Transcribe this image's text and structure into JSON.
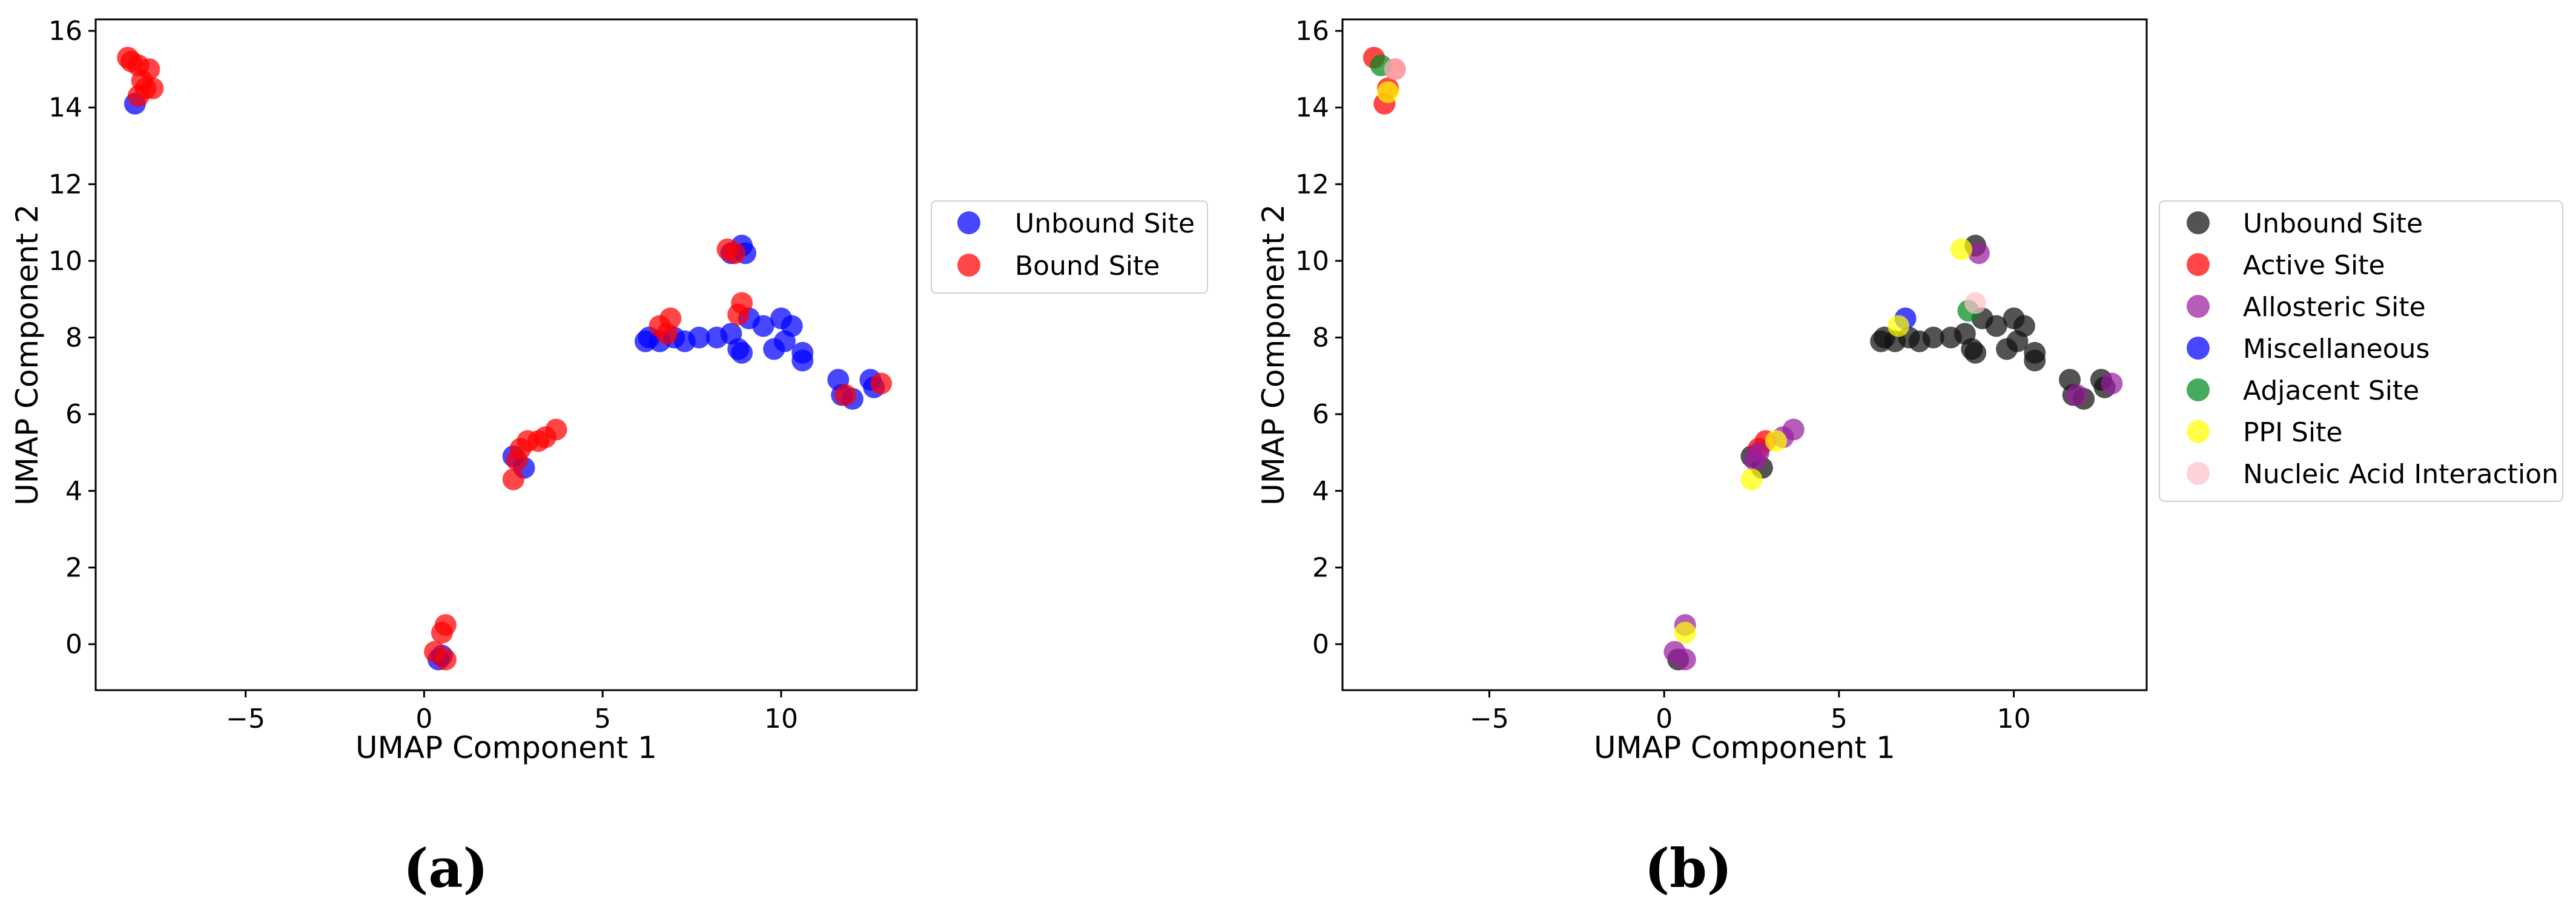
{
  "panels": [
    {
      "panel_label": "(a)",
      "xlabel": "UMAP Component 1",
      "ylabel": "UMAP Component 2",
      "xticks": [
        "−5",
        "0",
        "5",
        "10"
      ],
      "yticks": [
        "0",
        "2",
        "4",
        "6",
        "8",
        "10",
        "12",
        "14",
        "16"
      ],
      "legend": [
        {
          "label": "Unbound Site",
          "color": "#0000ff"
        },
        {
          "label": "Bound Site",
          "color": "#ff0000"
        }
      ]
    },
    {
      "panel_label": "(b)",
      "xlabel": "UMAP Component 1",
      "ylabel": "UMAP Component 2",
      "xticks": [
        "−5",
        "0",
        "5",
        "10"
      ],
      "yticks": [
        "0",
        "2",
        "4",
        "6",
        "8",
        "10",
        "12",
        "14",
        "16"
      ],
      "legend": [
        {
          "label": "Unbound Site",
          "color": "#111111"
        },
        {
          "label": "Active Site",
          "color": "#ff0000"
        },
        {
          "label": "Allosteric Site",
          "color": "#9a1fa0"
        },
        {
          "label": "Miscellaneous",
          "color": "#0000ff"
        },
        {
          "label": "Adjacent Site",
          "color": "#008a1e"
        },
        {
          "label": "PPI Site",
          "color": "#ffff00"
        },
        {
          "label": "Nucleic Acid Interaction",
          "color": "#ffc0cb"
        }
      ]
    }
  ],
  "chart_data": [
    {
      "type": "scatter",
      "title": "",
      "xlabel": "UMAP Component 1",
      "ylabel": "UMAP Component 2",
      "xlim": [
        -9.2,
        13.8
      ],
      "ylim": [
        -1.2,
        16.3
      ],
      "xticks": [
        -5,
        0,
        5,
        10
      ],
      "yticks": [
        0,
        2,
        4,
        6,
        8,
        10,
        12,
        14,
        16
      ],
      "legend_position": "outside-right",
      "series": [
        {
          "name": "Unbound Site",
          "color": "#0000ff",
          "points": [
            [
              -8.1,
              14.1
            ],
            [
              2.5,
              4.9
            ],
            [
              2.8,
              4.6
            ],
            [
              0.5,
              -0.3
            ],
            [
              0.4,
              -0.4
            ],
            [
              6.2,
              7.9
            ],
            [
              6.3,
              8.0
            ],
            [
              6.6,
              7.9
            ],
            [
              7.0,
              8.0
            ],
            [
              7.3,
              7.9
            ],
            [
              7.7,
              8.0
            ],
            [
              8.2,
              8.0
            ],
            [
              8.6,
              8.1
            ],
            [
              8.8,
              7.7
            ],
            [
              8.9,
              7.6
            ],
            [
              9.1,
              8.5
            ],
            [
              9.5,
              8.3
            ],
            [
              9.8,
              7.7
            ],
            [
              10.0,
              8.5
            ],
            [
              10.1,
              7.9
            ],
            [
              10.3,
              8.3
            ],
            [
              10.6,
              7.6
            ],
            [
              10.6,
              7.4
            ],
            [
              8.6,
              10.2
            ],
            [
              8.9,
              10.4
            ],
            [
              9.0,
              10.2
            ],
            [
              11.6,
              6.9
            ],
            [
              11.7,
              6.5
            ],
            [
              12.0,
              6.4
            ],
            [
              12.5,
              6.9
            ],
            [
              12.6,
              6.7
            ]
          ]
        },
        {
          "name": "Bound Site",
          "color": "#ff0000",
          "points": [
            [
              -8.3,
              15.3
            ],
            [
              -8.2,
              15.2
            ],
            [
              -8.0,
              15.1
            ],
            [
              -7.7,
              15.0
            ],
            [
              -7.9,
              14.7
            ],
            [
              -7.8,
              14.5
            ],
            [
              -7.6,
              14.5
            ],
            [
              -8.0,
              14.3
            ],
            [
              2.5,
              4.3
            ],
            [
              2.6,
              4.8
            ],
            [
              2.7,
              5.1
            ],
            [
              2.9,
              5.3
            ],
            [
              3.2,
              5.3
            ],
            [
              3.4,
              5.4
            ],
            [
              3.7,
              5.6
            ],
            [
              0.5,
              0.3
            ],
            [
              0.6,
              0.5
            ],
            [
              0.3,
              -0.2
            ],
            [
              0.6,
              -0.4
            ],
            [
              6.6,
              8.3
            ],
            [
              6.9,
              8.5
            ],
            [
              6.8,
              8.1
            ],
            [
              8.5,
              10.3
            ],
            [
              8.7,
              10.2
            ],
            [
              8.8,
              8.6
            ],
            [
              8.9,
              8.9
            ],
            [
              11.8,
              6.5
            ],
            [
              12.8,
              6.8
            ]
          ]
        }
      ]
    },
    {
      "type": "scatter",
      "title": "",
      "xlabel": "UMAP Component 1",
      "ylabel": "UMAP Component 2",
      "xlim": [
        -9.2,
        13.8
      ],
      "ylim": [
        -1.2,
        16.3
      ],
      "xticks": [
        -5,
        0,
        5,
        10
      ],
      "yticks": [
        0,
        2,
        4,
        6,
        8,
        10,
        12,
        14,
        16
      ],
      "legend_position": "outside-right",
      "series": [
        {
          "name": "Unbound Site",
          "color": "#111111",
          "points": [
            [
              2.5,
              4.9
            ],
            [
              2.8,
              4.6
            ],
            [
              6.2,
              7.9
            ],
            [
              6.3,
              8.0
            ],
            [
              6.6,
              7.9
            ],
            [
              7.0,
              8.0
            ],
            [
              7.3,
              7.9
            ],
            [
              7.7,
              8.0
            ],
            [
              8.2,
              8.0
            ],
            [
              8.6,
              8.1
            ],
            [
              8.8,
              7.7
            ],
            [
              8.9,
              7.6
            ],
            [
              9.1,
              8.5
            ],
            [
              9.5,
              8.3
            ],
            [
              9.8,
              7.7
            ],
            [
              10.0,
              8.5
            ],
            [
              10.1,
              7.9
            ],
            [
              10.3,
              8.3
            ],
            [
              10.6,
              7.6
            ],
            [
              10.6,
              7.4
            ],
            [
              8.9,
              10.4
            ],
            [
              11.6,
              6.9
            ],
            [
              11.7,
              6.5
            ],
            [
              12.0,
              6.4
            ],
            [
              12.5,
              6.9
            ],
            [
              12.6,
              6.7
            ],
            [
              0.4,
              -0.4
            ]
          ]
        },
        {
          "name": "Active Site",
          "color": "#ff0000",
          "points": [
            [
              -8.3,
              15.3
            ],
            [
              -7.7,
              15.0
            ],
            [
              -7.9,
              14.5
            ],
            [
              -8.0,
              14.1
            ],
            [
              2.7,
              5.1
            ],
            [
              2.9,
              5.3
            ]
          ]
        },
        {
          "name": "Allosteric Site",
          "color": "#9a1fa0",
          "points": [
            [
              2.6,
              4.8
            ],
            [
              3.4,
              5.4
            ],
            [
              3.7,
              5.6
            ],
            [
              0.6,
              0.5
            ],
            [
              0.3,
              -0.2
            ],
            [
              0.6,
              -0.4
            ],
            [
              9.0,
              10.2
            ],
            [
              11.8,
              6.5
            ],
            [
              12.8,
              6.8
            ],
            [
              2.7,
              5.0
            ]
          ]
        },
        {
          "name": "Miscellaneous",
          "color": "#0000ff",
          "points": [
            [
              6.9,
              8.5
            ]
          ]
        },
        {
          "name": "Adjacent Site",
          "color": "#008a1e",
          "points": [
            [
              -8.1,
              15.1
            ],
            [
              8.7,
              8.7
            ]
          ]
        },
        {
          "name": "PPI Site",
          "color": "#ffff00",
          "points": [
            [
              -7.9,
              14.4
            ],
            [
              2.5,
              4.3
            ],
            [
              3.2,
              5.3
            ],
            [
              0.6,
              0.3
            ],
            [
              6.7,
              8.3
            ],
            [
              8.5,
              10.3
            ]
          ]
        },
        {
          "name": "Nucleic Acid Interaction",
          "color": "#ffc0cb",
          "points": [
            [
              -7.7,
              15.0
            ],
            [
              8.9,
              8.9
            ]
          ]
        }
      ]
    }
  ]
}
